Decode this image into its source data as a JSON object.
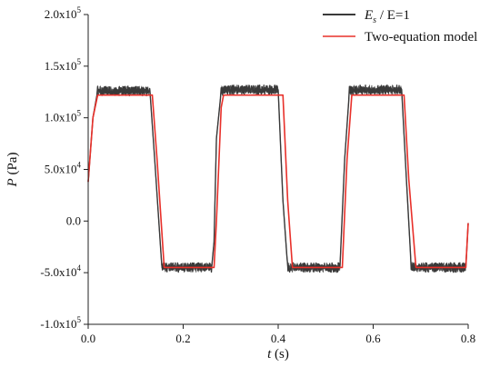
{
  "chart_data": {
    "type": "line",
    "title": "",
    "xlabel": {
      "symbol": "t",
      "unit": " (s)"
    },
    "ylabel": {
      "symbol": "P",
      "unit": " (Pa)"
    },
    "xlim": [
      0.0,
      0.8
    ],
    "ylim": [
      -100000,
      200000
    ],
    "grid": false,
    "legend_position": "top-right",
    "x_ticks": [
      0.0,
      0.2,
      0.4,
      0.6,
      0.8
    ],
    "x_tick_labels": [
      "0.0",
      "0.2",
      "0.4",
      "0.6",
      "0.8"
    ],
    "y_ticks": [
      {
        "value": -100000,
        "mantissa": "-1.0x10",
        "exp": "5"
      },
      {
        "value": -50000,
        "mantissa": "-5.0x10",
        "exp": "4"
      },
      {
        "value": 0,
        "mantissa": "0.0",
        "exp": ""
      },
      {
        "value": 50000,
        "mantissa": "5.0x10",
        "exp": "4"
      },
      {
        "value": 100000,
        "mantissa": "1.0x10",
        "exp": "5"
      },
      {
        "value": 150000,
        "mantissa": "1.5x10",
        "exp": "5"
      },
      {
        "value": 200000,
        "mantissa": "2.0x10",
        "exp": "5"
      }
    ],
    "series": [
      {
        "name": "Es / E=1",
        "legend": {
          "base": "E",
          "subscript": "s",
          "rest": " / E=1"
        },
        "color": "#3a3a3a",
        "noisy": true,
        "x": [
          0.0,
          0.01,
          0.02,
          0.13,
          0.14,
          0.155,
          0.16,
          0.26,
          0.265,
          0.27,
          0.28,
          0.29,
          0.4,
          0.41,
          0.42,
          0.43,
          0.53,
          0.54,
          0.55,
          0.555,
          0.66,
          0.67,
          0.68,
          0.69,
          0.795,
          0.8
        ],
        "y": [
          38000,
          100000,
          126000,
          126000,
          60000,
          -44000,
          -45000,
          -45000,
          -20000,
          80000,
          126000,
          127000,
          127000,
          20000,
          -45000,
          -45000,
          -45000,
          60000,
          126000,
          127000,
          127000,
          40000,
          -44000,
          -45000,
          -45000,
          -2000
        ]
      },
      {
        "name": "Two-equation model",
        "legend": {
          "base": "Two-equation model",
          "subscript": "",
          "rest": ""
        },
        "color": "#e8302a",
        "noisy": false,
        "x": [
          0.0,
          0.01,
          0.02,
          0.135,
          0.145,
          0.16,
          0.265,
          0.27,
          0.28,
          0.285,
          0.41,
          0.42,
          0.43,
          0.535,
          0.545,
          0.555,
          0.665,
          0.675,
          0.69,
          0.795,
          0.8
        ],
        "y": [
          38000,
          100000,
          122000,
          122000,
          60000,
          -45000,
          -45000,
          0,
          110000,
          122000,
          122000,
          20000,
          -45000,
          -45000,
          60000,
          122000,
          122000,
          40000,
          -45000,
          -45000,
          -2000
        ]
      }
    ]
  }
}
